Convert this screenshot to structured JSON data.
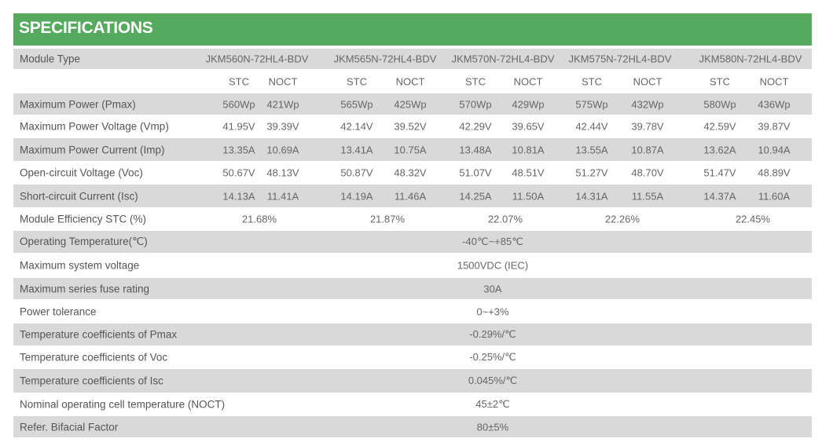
{
  "title": "SPECIFICATIONS",
  "colors": {
    "header_green": "#55aa5f",
    "row_gray": "#d9d9d9",
    "text": "#666666"
  },
  "module_type_label": "Module Type",
  "models": [
    "JKM560N-72HL4-BDV",
    "JKM565N-72HL4-BDV",
    "JKM570N-72HL4-BDV",
    "JKM575N-72HL4-BDV",
    "JKM580N-72HL4-BDV"
  ],
  "condition_labels": {
    "stc": "STC",
    "noct": "NOCT"
  },
  "per_model_rows": [
    {
      "label": "Maximum Power (Pmax)",
      "values": [
        [
          "560Wp",
          "421Wp"
        ],
        [
          "565Wp",
          "425Wp"
        ],
        [
          "570Wp",
          "429Wp"
        ],
        [
          "575Wp",
          "432Wp"
        ],
        [
          "580Wp",
          "436Wp"
        ]
      ]
    },
    {
      "label": "Maximum Power Voltage (Vmp)",
      "values": [
        [
          "41.95V",
          "39.39V"
        ],
        [
          "42.14V",
          "39.52V"
        ],
        [
          "42.29V",
          "39.65V"
        ],
        [
          "42.44V",
          "39.78V"
        ],
        [
          "42.59V",
          "39.87V"
        ]
      ]
    },
    {
      "label": "Maximum Power Current (Imp)",
      "values": [
        [
          "13.35A",
          "10.69A"
        ],
        [
          "13.41A",
          "10.75A"
        ],
        [
          "13.48A",
          "10.81A"
        ],
        [
          "13.55A",
          "10.87A"
        ],
        [
          "13.62A",
          "10.94A"
        ]
      ]
    },
    {
      "label": "Open-circuit Voltage (Voc)",
      "values": [
        [
          "50.67V",
          "48.13V"
        ],
        [
          "50.87V",
          "48.32V"
        ],
        [
          "51.07V",
          "48.51V"
        ],
        [
          "51.27V",
          "48.70V"
        ],
        [
          "51.47V",
          "48.89V"
        ]
      ]
    },
    {
      "label": "Short-circuit Current (Isc)",
      "values": [
        [
          "14.13A",
          "11.41A"
        ],
        [
          "14.19A",
          "11.46A"
        ],
        [
          "14.25A",
          "11.50A"
        ],
        [
          "14.31A",
          "11.55A"
        ],
        [
          "14.37A",
          "11.60A"
        ]
      ]
    }
  ],
  "efficiency_row": {
    "label": "Module Efficiency STC (%)",
    "values": [
      "21.68%",
      "21.87%",
      "22.07%",
      "22.26%",
      "22.45%"
    ]
  },
  "common_rows": [
    {
      "label": "Operating Temperature(℃)",
      "value": "-40℃~+85℃"
    },
    {
      "label": "Maximum system voltage",
      "value": "1500VDC (IEC)"
    },
    {
      "label": "Maximum series fuse rating",
      "value": "30A"
    },
    {
      "label": "Power tolerance",
      "value": "0~+3%"
    },
    {
      "label": "Temperature coefficients of Pmax",
      "value": "-0.29%/℃"
    },
    {
      "label": "Temperature coefficients of Voc",
      "value": "-0.25%/℃"
    },
    {
      "label": "Temperature coefficients of Isc",
      "value": "0.045%/℃"
    },
    {
      "label": "Nominal operating cell temperature  (NOCT)",
      "value": "45±2℃"
    },
    {
      "label": "Refer. Bifacial Factor",
      "value": "80±5%"
    }
  ]
}
